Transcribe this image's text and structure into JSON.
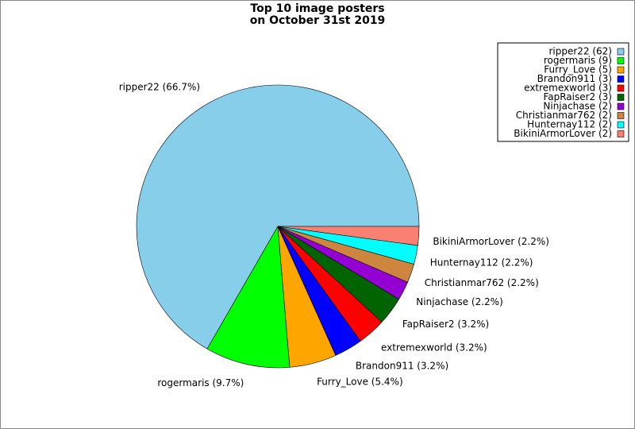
{
  "chart_data": {
    "type": "pie",
    "title": [
      "Top 10 image posters",
      "on October 31st 2019"
    ],
    "values": [
      62,
      9,
      5,
      3,
      3,
      3,
      2,
      2,
      2,
      2
    ],
    "value_labels": [
      "ripper22 (66.7%)",
      "rogermaris (9.7%)",
      "Furry_Love (5.4%)",
      "Brandon911 (3.2%)",
      "extremexworld (3.2%)",
      "FapRaiser2 (3.2%)",
      "Ninjachase (2.2%)",
      "Christianmar762 (2.2%)",
      "Hunternay112 (2.2%)",
      "BikiniArmorLover (2.2%)"
    ],
    "legend_labels": [
      "ripper22 (62)",
      "rogermaris (9)",
      "Furry_Love (5)",
      "Brandon911 (3)",
      "extremexworld (3)",
      "FapRaiser2 (3)",
      "Ninjachase (2)",
      "Christianmar762 (2)",
      "Hunternay112 (2)",
      "BikiniArmorLover (2)"
    ],
    "colors": [
      "#87ceeb",
      "#00ff00",
      "#ffa500",
      "#0000ff",
      "#ff0000",
      "#006400",
      "#9400d3",
      "#cd853f",
      "#00ffff",
      "#fa8072"
    ],
    "legend": "upper right"
  }
}
